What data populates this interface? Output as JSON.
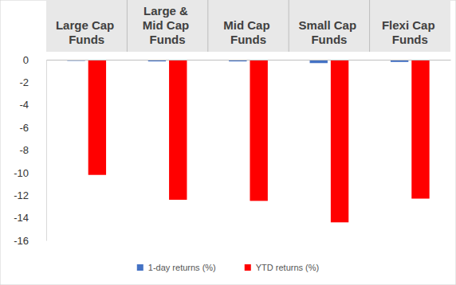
{
  "chart_data": {
    "type": "bar",
    "categories": [
      "Large Cap Funds",
      "Large & Mid Cap Funds",
      "Mid Cap Funds",
      "Small Cap Funds",
      "Flexi Cap Funds"
    ],
    "series": [
      {
        "name": "1-day returns (%)",
        "color": "#4472c4",
        "values": [
          -0.1,
          -0.15,
          -0.15,
          -0.3,
          -0.2
        ]
      },
      {
        "name": "YTD returns (%)",
        "color": "#ff0000",
        "values": [
          -10.2,
          -12.4,
          -12.5,
          -14.4,
          -12.3
        ]
      }
    ],
    "ylim": [
      -16,
      0
    ],
    "yticks": [
      0,
      -2,
      -4,
      -6,
      -8,
      -10,
      -12,
      -14,
      -16
    ],
    "grid": false,
    "legend": "bottom"
  }
}
